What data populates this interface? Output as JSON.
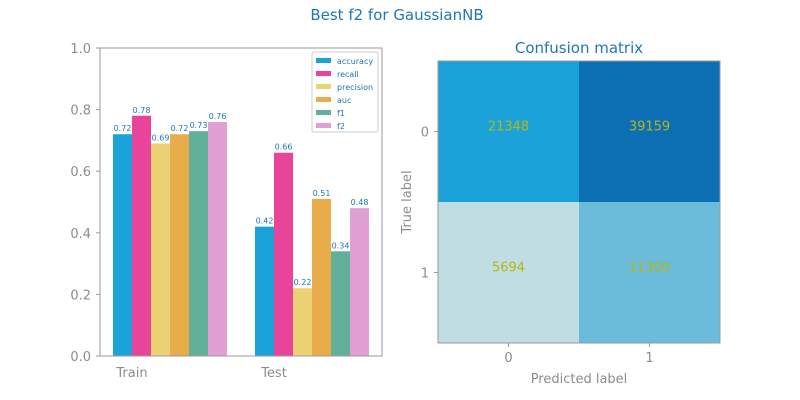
{
  "figure": {
    "title": "Best f2 for GaussianNB"
  },
  "chart_data": [
    {
      "type": "bar",
      "title": "",
      "xlabel": "",
      "ylabel": "",
      "categories": [
        "Train",
        "Test"
      ],
      "ylim": [
        0,
        1
      ],
      "yticks": [
        "0.0",
        "0.2",
        "0.4",
        "0.6",
        "0.8",
        "1.0"
      ],
      "legend_position": "top-right",
      "series": [
        {
          "name": "accuracy",
          "color": "#1ba3d9",
          "values": [
            0.72,
            0.42
          ],
          "labels": [
            "0.72",
            "0.42"
          ]
        },
        {
          "name": "recall",
          "color": "#e8449a",
          "values": [
            0.78,
            0.66
          ],
          "labels": [
            "0.78",
            "0.66"
          ]
        },
        {
          "name": "precision",
          "color": "#ecd274",
          "values": [
            0.69,
            0.22
          ],
          "labels": [
            "0.69",
            "0.22"
          ]
        },
        {
          "name": "auc",
          "color": "#e9ac4a",
          "values": [
            0.72,
            0.51
          ],
          "labels": [
            "0.72",
            "0.51"
          ]
        },
        {
          "name": "f1",
          "color": "#63b09a",
          "values": [
            0.73,
            0.34
          ],
          "labels": [
            "0.73",
            "0.34"
          ]
        },
        {
          "name": "f2",
          "color": "#e0a0d4",
          "values": [
            0.76,
            0.48
          ],
          "labels": [
            "0.76",
            "0.48"
          ]
        }
      ]
    },
    {
      "type": "heatmap",
      "title": "Confusion matrix",
      "xlabel": "Predicted label",
      "ylabel": "True label",
      "x_ticks": [
        "0",
        "1"
      ],
      "y_ticks": [
        "0",
        "1"
      ],
      "values": [
        [
          21348,
          39159
        ],
        [
          5694,
          11300
        ]
      ],
      "labels": [
        [
          "21348",
          "39159"
        ],
        [
          "5694",
          "11300"
        ]
      ],
      "colors": [
        [
          "#1ba3d9",
          "#0d6fb3"
        ],
        [
          "#bfdde2",
          "#6bbcda"
        ]
      ]
    }
  ]
}
